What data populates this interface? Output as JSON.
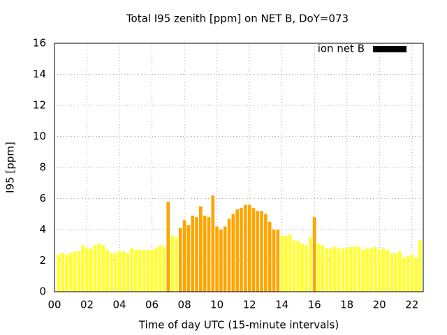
{
  "chart_data": {
    "type": "bar",
    "title": "Total I95 zenith [ppm] on NET B, DoY=073",
    "xlabel": "Time of day UTC (15-minute intervals)",
    "ylabel": "I95 [ppm]",
    "x": [
      0.25,
      0.5,
      0.75,
      1,
      1.25,
      1.5,
      1.75,
      2,
      2.25,
      2.5,
      2.75,
      3,
      3.25,
      3.5,
      3.75,
      4,
      4.25,
      4.5,
      4.75,
      5,
      5.25,
      5.5,
      5.75,
      6,
      6.25,
      6.5,
      6.75,
      7,
      7.25,
      7.5,
      7.75,
      8,
      8.25,
      8.5,
      8.75,
      9,
      9.25,
      9.5,
      9.75,
      10,
      10.25,
      10.5,
      10.75,
      11,
      11.25,
      11.5,
      11.75,
      12,
      12.25,
      12.5,
      12.75,
      13,
      13.25,
      13.5,
      13.75,
      14,
      14.25,
      14.5,
      14.75,
      15,
      15.25,
      15.5,
      15.75,
      16,
      16.25,
      16.5,
      16.75,
      17,
      17.25,
      17.5,
      17.75,
      18,
      18.25,
      18.5,
      18.75,
      19,
      19.25,
      19.5,
      19.75,
      20,
      20.25,
      20.5,
      20.75,
      21,
      21.25,
      21.5,
      21.75,
      22,
      22.25,
      22.5
    ],
    "series": [
      {
        "name": "ion net B",
        "color": "#000000",
        "values": [
          2.4,
          2.5,
          2.4,
          2.5,
          2.6,
          2.6,
          3.0,
          2.8,
          2.8,
          3.0,
          3.1,
          3.0,
          2.7,
          2.5,
          2.5,
          2.6,
          2.6,
          2.5,
          2.8,
          2.7,
          2.7,
          2.7,
          2.7,
          2.7,
          2.8,
          3.0,
          2.9,
          5.8,
          3.6,
          3.5,
          4.1,
          4.6,
          4.3,
          4.9,
          4.8,
          5.5,
          4.9,
          4.8,
          6.2,
          4.2,
          4.0,
          4.2,
          4.7,
          5.0,
          5.3,
          5.4,
          5.6,
          5.6,
          5.4,
          5.2,
          5.2,
          5.0,
          4.5,
          4.0,
          4.0,
          3.6,
          3.6,
          3.7,
          3.3,
          3.3,
          3.1,
          3.0,
          3.5,
          4.8,
          3.1,
          3.0,
          2.8,
          2.8,
          2.9,
          2.8,
          2.8,
          2.8,
          2.9,
          2.9,
          2.9,
          2.7,
          2.8,
          2.8,
          2.9,
          2.7,
          2.8,
          2.7,
          2.5,
          2.5,
          2.6,
          2.2,
          2.3,
          2.4,
          2.2,
          3.3
        ],
        "colors": [
          "#ffff33",
          "#ffff33",
          "#ffff33",
          "#ffff33",
          "#ffff33",
          "#ffff33",
          "#ffff33",
          "#ffff33",
          "#ffff33",
          "#ffff33",
          "#ffff33",
          "#ffff33",
          "#ffff33",
          "#ffff33",
          "#ffff33",
          "#ffff33",
          "#ffff33",
          "#ffff33",
          "#ffff33",
          "#ffff33",
          "#ffff33",
          "#ffff33",
          "#ffff33",
          "#ffff33",
          "#ffff33",
          "#ffff33",
          "#ffff33",
          "#ffa500",
          "#ffff33",
          "#ffff33",
          "#ffa500",
          "#ffa500",
          "#ffa500",
          "#ffa500",
          "#ffa500",
          "#ffa500",
          "#ffa500",
          "#ffa500",
          "#ffa500",
          "#ffa500",
          "#ffa500",
          "#ffa500",
          "#ffa500",
          "#ffa500",
          "#ffa500",
          "#ffa500",
          "#ffa500",
          "#ffa500",
          "#ffa500",
          "#ffa500",
          "#ffa500",
          "#ffa500",
          "#ffa500",
          "#ffa500",
          "#ffa500",
          "#ffff33",
          "#ffff33",
          "#ffff33",
          "#ffff33",
          "#ffff33",
          "#ffff33",
          "#ffff33",
          "#ffff33",
          "#ffa500",
          "#ffff33",
          "#ffff33",
          "#ffff33",
          "#ffff33",
          "#ffff33",
          "#ffff33",
          "#ffff33",
          "#ffff33",
          "#ffff33",
          "#ffff33",
          "#ffff33",
          "#ffff33",
          "#ffff33",
          "#ffff33",
          "#ffff33",
          "#ffff33",
          "#ffff33",
          "#ffff33",
          "#ffff33",
          "#ffff33",
          "#ffff33",
          "#ffff33",
          "#ffff33",
          "#ffff33",
          "#ffff33",
          "#ffff33"
        ]
      }
    ],
    "xlim": [
      0,
      22.7
    ],
    "xticks": [
      {
        "value": 0,
        "label": "00"
      },
      {
        "value": 2,
        "label": "02"
      },
      {
        "value": 4,
        "label": "04"
      },
      {
        "value": 6,
        "label": "06"
      },
      {
        "value": 8,
        "label": "08"
      },
      {
        "value": 10,
        "label": "10"
      },
      {
        "value": 12,
        "label": "12"
      },
      {
        "value": 14,
        "label": "14"
      },
      {
        "value": 16,
        "label": "16"
      },
      {
        "value": 18,
        "label": "18"
      },
      {
        "value": 20,
        "label": "20"
      },
      {
        "value": 22,
        "label": "22"
      }
    ],
    "ylim": [
      0,
      16
    ],
    "yticks": [
      0,
      2,
      4,
      6,
      8,
      10,
      12,
      14,
      16
    ],
    "grid": true,
    "legend": "top-right"
  }
}
